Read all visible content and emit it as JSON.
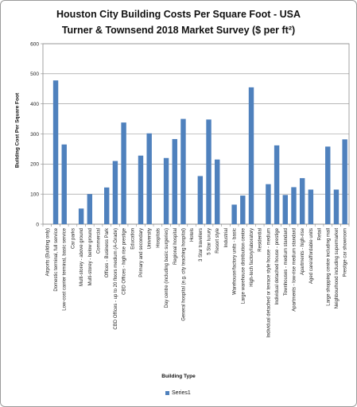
{
  "chart_data": {
    "type": "bar",
    "title_lines": [
      "Houston City Building Costs Per Square Foot - USA",
      "Turner & Townsend 2018 Market Survey ($ per ft²)"
    ],
    "xlabel": "Building Type",
    "ylabel": "Building  Cost Per Square Foot",
    "ylim": [
      0,
      600
    ],
    "yticks": [
      "0",
      "100",
      "200",
      "300",
      "400",
      "500",
      "600"
    ],
    "grid": true,
    "legend_position": "bottom",
    "bar_color": "#4f81bd",
    "categories": [
      "Airports (Building only)",
      "Domestic terminal, full service",
      "Low-cost carrier terminal, basic service",
      "Car parks",
      "Multi-storey - above ground",
      "Multi-storey - below ground",
      "Commercial",
      "Offices - Business Park",
      "CBD Offices - up to 20 floors medium (A-Grade)",
      "CBD Offices - high rise prestige",
      "Education",
      "Primary and secondary",
      "University",
      "Hospitals",
      "Day centre (including basic surgeries)",
      "Regional hospital",
      "General hospital (e.g. city teaching hospital)",
      "Hotels",
      "3 Star travellers",
      "5 Star luxury",
      "Resort style",
      "Industrial",
      "Warehouse/factory units - basic",
      "Large warehouse distribution centre",
      "High-tech factory/laboratory",
      "Residential",
      "Individual detached or terrace style house - medium",
      "Individual detached house - prestige",
      "Townhouses - medium standard",
      "Apartments - low-rise medium standard",
      "Apartments - high-rise",
      "Aged care/affordable units",
      "Retail",
      "Large shopping centre including mall",
      "Neighbourhood including supermarket",
      "Prestige car showroom"
    ],
    "series": [
      {
        "name": "Series1",
        "values": [
          null,
          478,
          265,
          null,
          52,
          100,
          null,
          122,
          210,
          338,
          null,
          228,
          302,
          null,
          220,
          283,
          350,
          null,
          160,
          348,
          215,
          null,
          65,
          95,
          455,
          null,
          133,
          262,
          97,
          123,
          153,
          115,
          null,
          258,
          115,
          282
        ]
      }
    ]
  }
}
